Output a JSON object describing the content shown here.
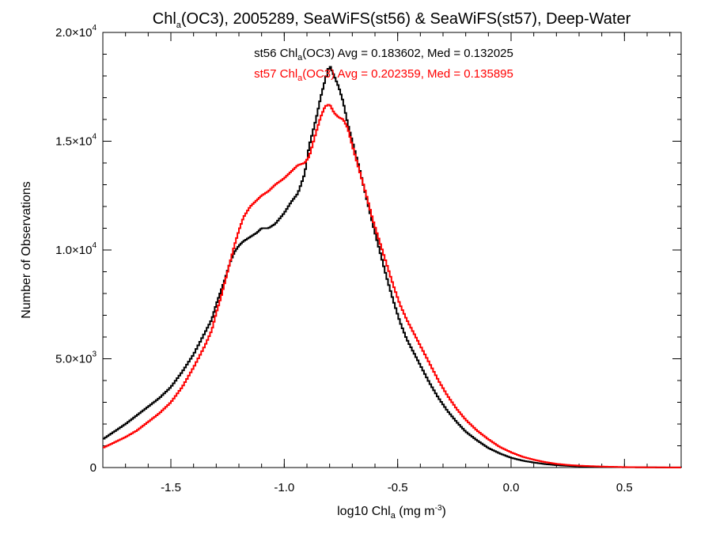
{
  "chart_data": {
    "type": "line",
    "title": {
      "prefix": "Chl",
      "sub": "a",
      "suffix": "(OC3), 2005289, SeaWiFS(st56) & SeaWiFS(st57), Deep-Water"
    },
    "xlabel": {
      "prefix": "log10 Chl",
      "sub": "a",
      "mid": " (mg m",
      "sup": "-3",
      "suffix": ")"
    },
    "ylabel": "Number of Observations",
    "xlim": [
      -1.8,
      0.75
    ],
    "ylim": [
      0,
      20000
    ],
    "grid": false,
    "x_ticks": [
      {
        "value": -1.5,
        "label": "-1.5"
      },
      {
        "value": -1.0,
        "label": "-1.0"
      },
      {
        "value": -0.5,
        "label": "-0.5"
      },
      {
        "value": 0.0,
        "label": "0.0"
      },
      {
        "value": 0.5,
        "label": "0.5"
      }
    ],
    "x_minor_step": 0.1,
    "y_ticks": [
      {
        "value": 0,
        "mant": "0",
        "exp": ""
      },
      {
        "value": 5000,
        "mant": "5.0×10",
        "exp": "3"
      },
      {
        "value": 10000,
        "mant": "1.0×10",
        "exp": "4"
      },
      {
        "value": 15000,
        "mant": "1.5×10",
        "exp": "4"
      },
      {
        "value": 20000,
        "mant": "2.0×10",
        "exp": "4"
      }
    ],
    "y_minor_step": 1000,
    "series": [
      {
        "color": "#000000",
        "label": {
          "pre": "st56 Chl",
          "sub": "a",
          "post": "(OC3) Avg = 0.183602, Med = 0.132025"
        },
        "points": [
          [
            -1.8,
            1300
          ],
          [
            -1.75,
            1650
          ],
          [
            -1.7,
            2000
          ],
          [
            -1.65,
            2400
          ],
          [
            -1.6,
            2800
          ],
          [
            -1.55,
            3200
          ],
          [
            -1.5,
            3700
          ],
          [
            -1.45,
            4400
          ],
          [
            -1.4,
            5200
          ],
          [
            -1.35,
            6200
          ],
          [
            -1.32,
            6800
          ],
          [
            -1.3,
            7500
          ],
          [
            -1.28,
            8100
          ],
          [
            -1.26,
            8700
          ],
          [
            -1.24,
            9400
          ],
          [
            -1.22,
            9900
          ],
          [
            -1.2,
            10200
          ],
          [
            -1.18,
            10400
          ],
          [
            -1.15,
            10600
          ],
          [
            -1.12,
            10800
          ],
          [
            -1.1,
            11000
          ],
          [
            -1.07,
            11000
          ],
          [
            -1.04,
            11200
          ],
          [
            -1.0,
            11700
          ],
          [
            -0.97,
            12200
          ],
          [
            -0.94,
            12600
          ],
          [
            -0.91,
            13500
          ],
          [
            -0.89,
            14800
          ],
          [
            -0.86,
            16000
          ],
          [
            -0.84,
            17000
          ],
          [
            -0.82,
            17800
          ],
          [
            -0.8,
            18500
          ],
          [
            -0.78,
            18000
          ],
          [
            -0.76,
            17500
          ],
          [
            -0.74,
            16800
          ],
          [
            -0.72,
            15800
          ],
          [
            -0.7,
            15000
          ],
          [
            -0.67,
            13800
          ],
          [
            -0.64,
            12500
          ],
          [
            -0.61,
            11200
          ],
          [
            -0.58,
            10000
          ],
          [
            -0.55,
            8800
          ],
          [
            -0.52,
            7700
          ],
          [
            -0.49,
            6700
          ],
          [
            -0.46,
            5900
          ],
          [
            -0.43,
            5300
          ],
          [
            -0.4,
            4700
          ],
          [
            -0.36,
            3900
          ],
          [
            -0.32,
            3200
          ],
          [
            -0.28,
            2600
          ],
          [
            -0.24,
            2100
          ],
          [
            -0.2,
            1650
          ],
          [
            -0.15,
            1250
          ],
          [
            -0.1,
            900
          ],
          [
            -0.05,
            650
          ],
          [
            0.0,
            450
          ],
          [
            0.05,
            320
          ],
          [
            0.1,
            230
          ],
          [
            0.15,
            160
          ],
          [
            0.2,
            110
          ],
          [
            0.25,
            80
          ],
          [
            0.3,
            55
          ],
          [
            0.4,
            30
          ],
          [
            0.5,
            15
          ],
          [
            0.6,
            8
          ],
          [
            0.75,
            3
          ]
        ]
      },
      {
        "color": "#ff0000",
        "label": {
          "pre": "st57 Chl",
          "sub": "a",
          "post": "(OC3) Avg = 0.202359, Med = 0.135895"
        },
        "points": [
          [
            -1.8,
            900
          ],
          [
            -1.75,
            1150
          ],
          [
            -1.7,
            1400
          ],
          [
            -1.65,
            1700
          ],
          [
            -1.6,
            2100
          ],
          [
            -1.55,
            2500
          ],
          [
            -1.5,
            3000
          ],
          [
            -1.45,
            3700
          ],
          [
            -1.4,
            4600
          ],
          [
            -1.35,
            5600
          ],
          [
            -1.32,
            6300
          ],
          [
            -1.3,
            7100
          ],
          [
            -1.28,
            7800
          ],
          [
            -1.26,
            8600
          ],
          [
            -1.24,
            9400
          ],
          [
            -1.22,
            10200
          ],
          [
            -1.2,
            10900
          ],
          [
            -1.18,
            11500
          ],
          [
            -1.15,
            12000
          ],
          [
            -1.12,
            12300
          ],
          [
            -1.1,
            12500
          ],
          [
            -1.07,
            12700
          ],
          [
            -1.04,
            13000
          ],
          [
            -1.0,
            13300
          ],
          [
            -0.97,
            13600
          ],
          [
            -0.94,
            13900
          ],
          [
            -0.91,
            14000
          ],
          [
            -0.89,
            14300
          ],
          [
            -0.86,
            15400
          ],
          [
            -0.84,
            16100
          ],
          [
            -0.82,
            16600
          ],
          [
            -0.8,
            16700
          ],
          [
            -0.78,
            16300
          ],
          [
            -0.76,
            16100
          ],
          [
            -0.74,
            16000
          ],
          [
            -0.72,
            15600
          ],
          [
            -0.7,
            14800
          ],
          [
            -0.67,
            13700
          ],
          [
            -0.64,
            12600
          ],
          [
            -0.61,
            11400
          ],
          [
            -0.58,
            10400
          ],
          [
            -0.55,
            9400
          ],
          [
            -0.52,
            8400
          ],
          [
            -0.49,
            7500
          ],
          [
            -0.46,
            6800
          ],
          [
            -0.43,
            6200
          ],
          [
            -0.4,
            5600
          ],
          [
            -0.36,
            4800
          ],
          [
            -0.32,
            4000
          ],
          [
            -0.28,
            3300
          ],
          [
            -0.24,
            2700
          ],
          [
            -0.2,
            2200
          ],
          [
            -0.15,
            1700
          ],
          [
            -0.1,
            1300
          ],
          [
            -0.05,
            950
          ],
          [
            0.0,
            700
          ],
          [
            0.05,
            500
          ],
          [
            0.1,
            360
          ],
          [
            0.15,
            250
          ],
          [
            0.2,
            170
          ],
          [
            0.25,
            120
          ],
          [
            0.3,
            85
          ],
          [
            0.4,
            45
          ],
          [
            0.5,
            22
          ],
          [
            0.6,
            10
          ],
          [
            0.75,
            4
          ]
        ]
      }
    ]
  }
}
